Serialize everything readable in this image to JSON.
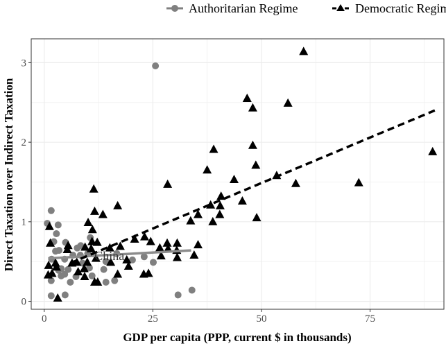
{
  "chart_data": {
    "type": "scatter",
    "xlabel": "GDP per capita (PPP, current $ in thousands)",
    "ylabel": "Direct Taxation over Indirect Taxation",
    "xlim": [
      -3,
      92
    ],
    "ylim": [
      -0.1,
      3.3
    ],
    "x_ticks": [
      "0",
      "25",
      "50",
      "75"
    ],
    "y_ticks": [
      "0",
      "1",
      "2",
      "3"
    ],
    "grid": true,
    "legend_position": "top",
    "annotations": [
      {
        "text": "China",
        "x": 15,
        "y": 0.57
      }
    ],
    "series": [
      {
        "name": "Authoritarian Regime",
        "marker": "circle",
        "color": "#808080",
        "fit": {
          "style": "solid",
          "x": [
            0.9,
            33.8
          ],
          "y": [
            0.54,
            0.64
          ]
        },
        "points": [
          [
            1.6,
            1.14
          ],
          [
            0.7,
            0.98
          ],
          [
            3.2,
            0.96
          ],
          [
            2.8,
            0.85
          ],
          [
            10.6,
            0.8
          ],
          [
            2.2,
            0.75
          ],
          [
            4.9,
            0.74
          ],
          [
            7.6,
            0.67
          ],
          [
            8.4,
            0.7
          ],
          [
            2.6,
            0.63
          ],
          [
            3.4,
            0.64
          ],
          [
            10.0,
            0.6
          ],
          [
            8.3,
            0.58
          ],
          [
            6.6,
            0.58
          ],
          [
            4.7,
            0.53
          ],
          [
            1.7,
            0.53
          ],
          [
            8.8,
            0.48
          ],
          [
            10.4,
            0.42
          ],
          [
            5.5,
            0.4
          ],
          [
            3.9,
            0.41
          ],
          [
            3.3,
            0.39
          ],
          [
            4.7,
            0.34
          ],
          [
            3.9,
            0.32
          ],
          [
            7.3,
            0.31
          ],
          [
            11.0,
            0.32
          ],
          [
            13.7,
            0.4
          ],
          [
            14.2,
            0.5
          ],
          [
            16.7,
            0.6
          ],
          [
            20.3,
            0.52
          ],
          [
            23.0,
            0.56
          ],
          [
            25.1,
            0.49
          ],
          [
            1.6,
            0.26
          ],
          [
            6.0,
            0.24
          ],
          [
            14.2,
            0.24
          ],
          [
            16.2,
            0.26
          ],
          [
            1.6,
            0.07
          ],
          [
            4.8,
            0.08
          ],
          [
            30.8,
            0.08
          ],
          [
            34.0,
            0.14
          ],
          [
            25.6,
            2.96
          ]
        ]
      },
      {
        "name": "Democratic Regime",
        "marker": "triangle",
        "color": "#000000",
        "fit": {
          "style": "dashed",
          "x": [
            6,
            89.9
          ],
          "y": [
            0.48,
            2.4
          ]
        },
        "points": [
          [
            59.7,
            3.14
          ],
          [
            46.7,
            2.55
          ],
          [
            56.1,
            2.49
          ],
          [
            48.0,
            2.43
          ],
          [
            89.4,
            1.88
          ],
          [
            39.0,
            1.91
          ],
          [
            48.0,
            1.96
          ],
          [
            37.5,
            1.65
          ],
          [
            48.7,
            1.71
          ],
          [
            43.7,
            1.53
          ],
          [
            53.5,
            1.58
          ],
          [
            57.9,
            1.48
          ],
          [
            72.4,
            1.49
          ],
          [
            40.7,
            1.32
          ],
          [
            45.6,
            1.26
          ],
          [
            38.3,
            1.21
          ],
          [
            40.5,
            1.2
          ],
          [
            35.4,
            1.09
          ],
          [
            40.4,
            1.09
          ],
          [
            33.7,
            1.01
          ],
          [
            38.8,
            1.0
          ],
          [
            48.9,
            1.05
          ],
          [
            11.4,
            1.41
          ],
          [
            28.4,
            1.47
          ],
          [
            16.9,
            1.2
          ],
          [
            11.6,
            1.13
          ],
          [
            13.5,
            1.09
          ],
          [
            10.1,
            0.99
          ],
          [
            1.2,
            0.94
          ],
          [
            11.1,
            0.9
          ],
          [
            1.4,
            0.73
          ],
          [
            5.3,
            0.65
          ],
          [
            5.5,
            0.7
          ],
          [
            9.4,
            0.68
          ],
          [
            11.0,
            0.75
          ],
          [
            12.2,
            0.74
          ],
          [
            15.1,
            0.67
          ],
          [
            17.5,
            0.69
          ],
          [
            20.8,
            0.78
          ],
          [
            23.1,
            0.81
          ],
          [
            24.5,
            0.75
          ],
          [
            26.6,
            0.67
          ],
          [
            28.3,
            0.73
          ],
          [
            28.5,
            0.66
          ],
          [
            30.6,
            0.73
          ],
          [
            30.5,
            0.64
          ],
          [
            26.9,
            0.57
          ],
          [
            30.6,
            0.55
          ],
          [
            35.4,
            0.71
          ],
          [
            34.5,
            0.58
          ],
          [
            10.8,
            0.66
          ],
          [
            11.9,
            0.54
          ],
          [
            9.9,
            0.49
          ],
          [
            7.5,
            0.49
          ],
          [
            6.4,
            0.48
          ],
          [
            2.6,
            0.48
          ],
          [
            1.0,
            0.45
          ],
          [
            2.8,
            0.43
          ],
          [
            9.2,
            0.41
          ],
          [
            15.3,
            0.49
          ],
          [
            19.0,
            0.52
          ],
          [
            19.4,
            0.44
          ],
          [
            7.8,
            0.37
          ],
          [
            1.8,
            0.35
          ],
          [
            0.9,
            0.33
          ],
          [
            16.9,
            0.34
          ],
          [
            9.3,
            0.31
          ],
          [
            22.9,
            0.34
          ],
          [
            24.0,
            0.35
          ],
          [
            11.6,
            0.24
          ],
          [
            12.3,
            0.24
          ],
          [
            3.1,
            0.04
          ]
        ]
      }
    ]
  }
}
